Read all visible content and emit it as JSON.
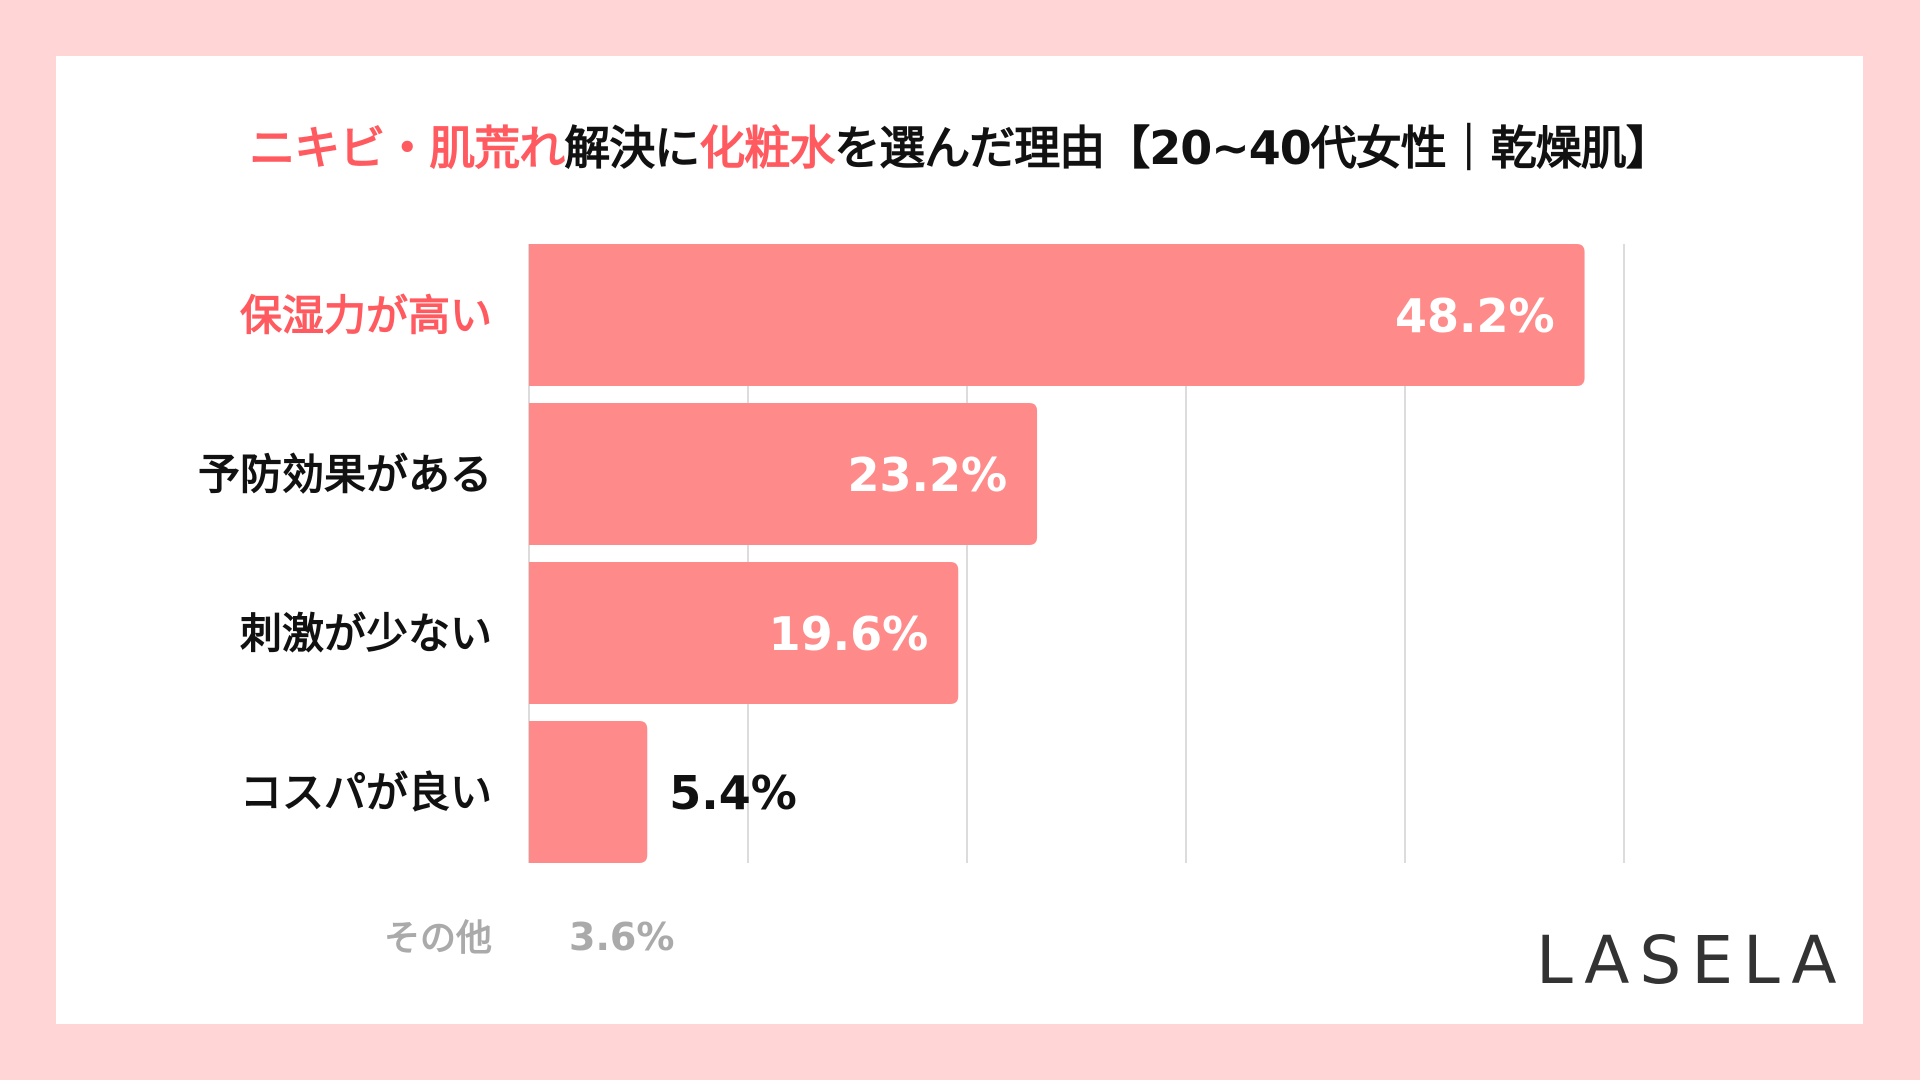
{
  "title": {
    "parts": [
      {
        "text": "ニキビ・肌荒れ",
        "highlight": true
      },
      {
        "text": "解決に",
        "highlight": false
      },
      {
        "text": "化粧水",
        "highlight": true
      },
      {
        "text": "を選んだ理由【20~40代女性｜乾燥肌】",
        "highlight": false
      }
    ]
  },
  "colors": {
    "bar": "#ff8a8a",
    "highlight": "#ff5a5f",
    "grid": "#d0d0d0",
    "other": "#aaaaaa",
    "text": "#111111",
    "background": "#ffd5d5"
  },
  "chart_data": {
    "type": "bar",
    "orientation": "horizontal",
    "categories": [
      "保湿力が高い",
      "予防効果がある",
      "刺激が少ない",
      "コスパが良い"
    ],
    "values": [
      48.2,
      23.2,
      19.6,
      5.4
    ],
    "value_labels": [
      "48.2%",
      "23.2%",
      "19.6%",
      "5.4%"
    ],
    "highlighted_category": "保湿力が高い",
    "xlim": [
      0,
      50
    ],
    "grid": true,
    "grid_step": 10,
    "other": {
      "label": "その他",
      "value": 3.6,
      "value_label": "3.6%"
    }
  },
  "logo": "LASELA"
}
